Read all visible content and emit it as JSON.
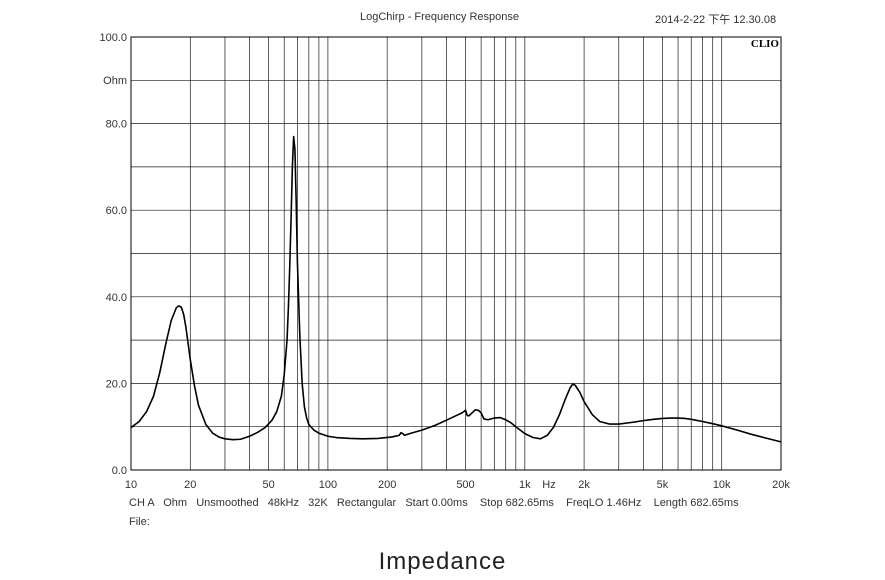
{
  "header": {
    "title": "LogChirp - Frequency Response",
    "timestamp": "2014-2-22 下午 12.30.08",
    "brand": "CLIO"
  },
  "info_line": "CH A   Ohm   Unsmoothed   48kHz   32K   Rectangular   Start 0.00ms    Stop 682.65ms    FreqLO 1.46Hz    Length 682.65ms",
  "file_line": "File:",
  "caption": "Impedance",
  "chart_data": {
    "type": "line",
    "title": "LogChirp - Frequency Response",
    "xscale": "log",
    "xlim": [
      10,
      20000
    ],
    "ylim": [
      0,
      100
    ],
    "ylabel": "Ohm",
    "x_unit_label": "Hz",
    "grid": true,
    "x_tick_labels": [
      {
        "v": 10,
        "t": "10"
      },
      {
        "v": 20,
        "t": "20"
      },
      {
        "v": 50,
        "t": "50"
      },
      {
        "v": 100,
        "t": "100"
      },
      {
        "v": 200,
        "t": "200"
      },
      {
        "v": 500,
        "t": "500"
      },
      {
        "v": 1000,
        "t": "1k"
      },
      {
        "v": 2000,
        "t": "2k"
      },
      {
        "v": 5000,
        "t": "5k"
      },
      {
        "v": 10000,
        "t": "10k"
      },
      {
        "v": 20000,
        "t": "20k"
      }
    ],
    "y_tick_labels": [
      {
        "v": 0,
        "t": "0.0"
      },
      {
        "v": 20,
        "t": "20.0"
      },
      {
        "v": 40,
        "t": "40.0"
      },
      {
        "v": 60,
        "t": "60.0"
      },
      {
        "v": 80,
        "t": "80.0"
      },
      {
        "v": 100,
        "t": "100.0"
      }
    ],
    "series": [
      {
        "color": "#000000",
        "x": [
          10,
          11,
          12,
          13,
          14,
          15,
          16,
          17,
          17.5,
          18,
          18.5,
          19,
          20,
          21,
          22,
          24,
          26,
          28,
          30,
          33,
          36,
          40,
          44,
          48,
          52,
          55,
          58,
          60,
          62,
          63,
          64,
          65,
          66,
          67,
          68,
          69,
          70,
          72,
          74,
          76,
          78,
          80,
          85,
          90,
          100,
          110,
          130,
          150,
          180,
          210,
          230,
          235,
          240,
          245,
          260,
          300,
          350,
          400,
          450,
          480,
          500,
          510,
          520,
          540,
          560,
          580,
          600,
          620,
          650,
          700,
          750,
          800,
          850,
          900,
          1000,
          1100,
          1200,
          1300,
          1400,
          1500,
          1600,
          1700,
          1750,
          1800,
          1900,
          2000,
          2200,
          2400,
          2700,
          3000,
          3500,
          4000,
          4500,
          5000,
          5500,
          6000,
          6500,
          7000,
          8000,
          9000,
          10000,
          12000,
          14000,
          17000,
          20000
        ],
        "y": [
          9.8,
          11.2,
          13.5,
          17.0,
          22.5,
          29.0,
          34.5,
          37.5,
          37.9,
          37.6,
          36.0,
          33.0,
          25.5,
          19.5,
          15.0,
          10.5,
          8.5,
          7.6,
          7.2,
          7.0,
          7.1,
          7.8,
          8.7,
          9.8,
          11.5,
          13.5,
          17.0,
          22.0,
          30.0,
          37.5,
          47.0,
          58.0,
          70.0,
          77.0,
          74.0,
          62.0,
          48.0,
          31.0,
          20.0,
          14.5,
          12.0,
          10.5,
          9.2,
          8.5,
          7.8,
          7.5,
          7.3,
          7.2,
          7.3,
          7.6,
          8.0,
          8.6,
          8.4,
          8.0,
          8.4,
          9.2,
          10.3,
          11.5,
          12.6,
          13.2,
          13.8,
          12.6,
          12.5,
          13.2,
          13.9,
          13.8,
          13.2,
          11.8,
          11.6,
          12.0,
          12.1,
          11.6,
          10.9,
          10.0,
          8.4,
          7.5,
          7.2,
          8.0,
          9.9,
          12.8,
          16.2,
          19.0,
          19.8,
          19.6,
          18.0,
          15.8,
          12.8,
          11.2,
          10.6,
          10.6,
          11.0,
          11.4,
          11.7,
          11.9,
          12.0,
          12.0,
          11.9,
          11.7,
          11.2,
          10.7,
          10.2,
          9.2,
          8.3,
          7.3,
          6.5
        ]
      }
    ]
  }
}
